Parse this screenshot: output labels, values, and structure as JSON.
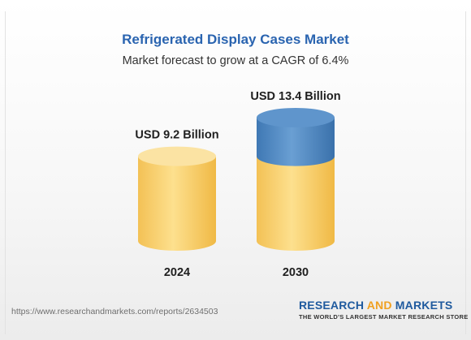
{
  "header": {
    "title": "Refrigerated Display Cases Market",
    "subtitle": "Market forecast to grow at a CAGR of 6.4%"
  },
  "chart_data": {
    "type": "bar",
    "title": "Refrigerated Display Cases Market",
    "subtitle": "Market forecast to grow at a CAGR of 6.4%",
    "categories": [
      "2024",
      "2030"
    ],
    "values": [
      9.2,
      13.4
    ],
    "value_labels": [
      "USD 9.2 Billion",
      "USD 13.4 Billion"
    ],
    "xlabel": "",
    "ylabel": "",
    "grid": false,
    "legend": "none",
    "colors": {
      "base": "#f7cb62",
      "growth": "#4a83bd"
    }
  },
  "footer": {
    "source_url": "https://www.researchandmarkets.com/reports/2634503",
    "logo_word1": "RESEARCH",
    "logo_word2": "AND",
    "logo_word3": "MARKETS",
    "logo_tagline": "THE WORLD'S LARGEST MARKET RESEARCH STORE"
  }
}
